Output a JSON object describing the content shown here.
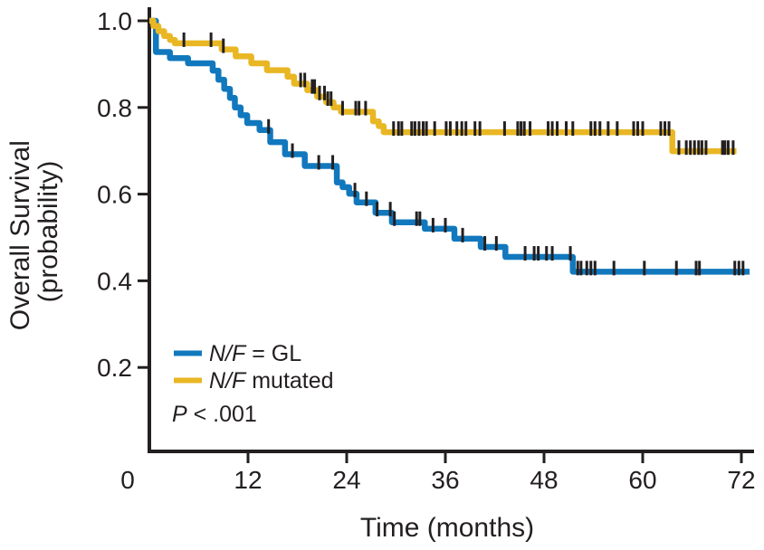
{
  "colors": {
    "axis": "#231f20",
    "background": "#ffffff"
  },
  "chart_data": {
    "type": "line",
    "subtype": "kaplan-meier-step",
    "title": "",
    "xlabel": "Time (months)",
    "ylabel_line1": "Overall Survival",
    "ylabel_line2": "(probability)",
    "xlim": [
      0,
      72
    ],
    "ylim": [
      0,
      1.0
    ],
    "grid": false,
    "legend_position": "lower-left",
    "x_ticks": [
      {
        "label": "0",
        "value": 0
      },
      {
        "label": "12",
        "value": 12
      },
      {
        "label": "24",
        "value": 24
      },
      {
        "label": "36",
        "value": 36
      },
      {
        "label": "48",
        "value": 48
      },
      {
        "label": "60",
        "value": 60
      },
      {
        "label": "72",
        "value": 72
      }
    ],
    "y_ticks": [
      {
        "label": "0.2",
        "value": 0.2
      },
      {
        "label": "0.4",
        "value": 0.4
      },
      {
        "label": "0.6",
        "value": 0.6
      },
      {
        "label": "0.8",
        "value": 0.8
      },
      {
        "label": "1.0",
        "value": 1.0
      }
    ],
    "annotation": {
      "text": "P < .001",
      "italic": "P",
      "rest": " < .001"
    },
    "series": [
      {
        "name": "N/F = GL",
        "name_italic": "N/F",
        "name_rest": " = GL",
        "color": "#1178bd",
        "end_time": 73.0,
        "steps": [
          [
            0,
            1.0
          ],
          [
            0.8,
            0.928
          ],
          [
            2.5,
            0.914
          ],
          [
            4.7,
            0.902
          ],
          [
            7.7,
            0.885
          ],
          [
            8.4,
            0.864
          ],
          [
            9.1,
            0.843
          ],
          [
            9.8,
            0.822
          ],
          [
            10.4,
            0.8
          ],
          [
            11.1,
            0.782
          ],
          [
            11.9,
            0.764
          ],
          [
            13.4,
            0.748
          ],
          [
            14.7,
            0.72
          ],
          [
            16.5,
            0.692
          ],
          [
            18.9,
            0.665
          ],
          [
            22.8,
            0.627
          ],
          [
            23.5,
            0.616
          ],
          [
            24.3,
            0.601
          ],
          [
            25.2,
            0.581
          ],
          [
            27.5,
            0.557
          ],
          [
            29.5,
            0.535
          ],
          [
            33.5,
            0.52
          ],
          [
            37.1,
            0.497
          ],
          [
            40.3,
            0.478
          ],
          [
            43.3,
            0.455
          ],
          [
            51.5,
            0.421
          ]
        ],
        "censors": [
          14.5,
          17.4,
          20.6,
          22.3,
          25.0,
          26.4,
          27.7,
          29.3,
          29.8,
          32.5,
          32.9,
          34.5,
          36.0,
          38.1,
          40.8,
          42.2,
          45.7,
          46.8,
          47.3,
          48.3,
          49.0,
          51.2,
          52.1,
          52.5,
          53.2,
          53.7,
          54.2,
          56.5,
          60.2,
          64.1,
          66.5,
          66.9,
          71.2,
          71.7,
          72.2
        ]
      },
      {
        "name": "N/F mutated",
        "name_italic": "N/F",
        "name_rest": " mutated",
        "color": "#e9b724",
        "end_time": 71.4,
        "steps": [
          [
            0,
            1.0
          ],
          [
            0.5,
            0.988
          ],
          [
            1.1,
            0.976
          ],
          [
            1.8,
            0.965
          ],
          [
            2.5,
            0.956
          ],
          [
            3.1,
            0.948
          ],
          [
            8.8,
            0.934
          ],
          [
            10.5,
            0.918
          ],
          [
            12.4,
            0.902
          ],
          [
            14.3,
            0.886
          ],
          [
            16.8,
            0.871
          ],
          [
            17.6,
            0.855
          ],
          [
            19.2,
            0.84
          ],
          [
            20.4,
            0.825
          ],
          [
            21.5,
            0.812
          ],
          [
            22.4,
            0.8
          ],
          [
            23.3,
            0.79
          ],
          [
            27.2,
            0.768
          ],
          [
            27.9,
            0.757
          ],
          [
            28.5,
            0.743
          ],
          [
            63.6,
            0.699
          ]
        ],
        "censors": [
          4.2,
          7.5,
          9.0,
          18.4,
          18.9,
          19.8,
          20.1,
          20.7,
          21.3,
          21.7,
          22.1,
          23.5,
          25.1,
          25.5,
          26.3,
          29.7,
          30.3,
          30.7,
          31.9,
          32.3,
          32.8,
          33.3,
          33.7,
          34.7,
          36.1,
          36.6,
          37.4,
          38.0,
          38.5,
          39.6,
          40.2,
          43.2,
          44.8,
          45.2,
          45.6,
          46.3,
          48.5,
          49.0,
          49.6,
          50.7,
          51.5,
          53.7,
          54.2,
          54.8,
          55.8,
          56.9,
          58.9,
          59.4,
          60.0,
          62.2,
          62.7,
          63.2,
          64.4,
          65.3,
          65.8,
          66.3,
          66.8,
          67.2,
          67.7,
          69.7,
          70.0,
          70.4,
          71.0
        ]
      }
    ]
  }
}
